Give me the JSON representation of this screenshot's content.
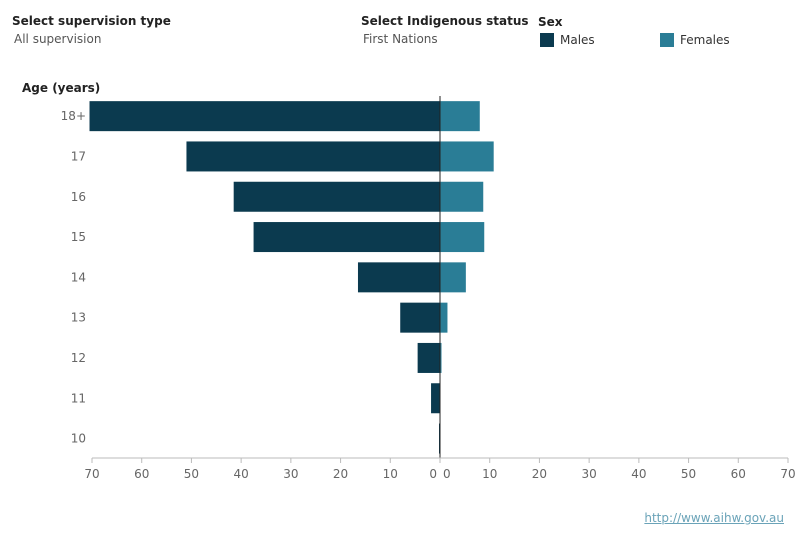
{
  "filters": {
    "supervision_label": "Select supervision type",
    "supervision_value": "All supervision",
    "indigenous_label": "Select Indigenous status",
    "indigenous_value": "First Nations"
  },
  "legend": {
    "title": "Sex",
    "items": [
      {
        "label": "Males",
        "color": "#0b3a4f"
      },
      {
        "label": "Females",
        "color": "#2a7d96"
      }
    ]
  },
  "footer": {
    "link": "http://www.aihw.gov.au"
  },
  "chart_data": {
    "type": "bar",
    "orientation": "horizontal-butterfly",
    "ylabel": "Age (years)",
    "categories": [
      "18+",
      "17",
      "16",
      "15",
      "14",
      "13",
      "12",
      "11",
      "10"
    ],
    "series": [
      {
        "name": "Males",
        "color": "#0b3a4f",
        "values": [
          70.5,
          51,
          41.5,
          37.5,
          16.5,
          8,
          4.5,
          1.8,
          0.2
        ]
      },
      {
        "name": "Females",
        "color": "#2a7d96",
        "values": [
          8,
          10.8,
          8.7,
          8.9,
          5.2,
          1.5,
          0.3,
          0,
          0
        ]
      }
    ],
    "xlim_left": [
      70,
      0
    ],
    "xlim_right": [
      0,
      70
    ],
    "xticks_left": [
      "70",
      "60",
      "50",
      "40",
      "30",
      "20",
      "10",
      "0"
    ],
    "xticks_right": [
      "0",
      "10",
      "20",
      "30",
      "40",
      "50",
      "60",
      "70"
    ],
    "grid": false
  }
}
